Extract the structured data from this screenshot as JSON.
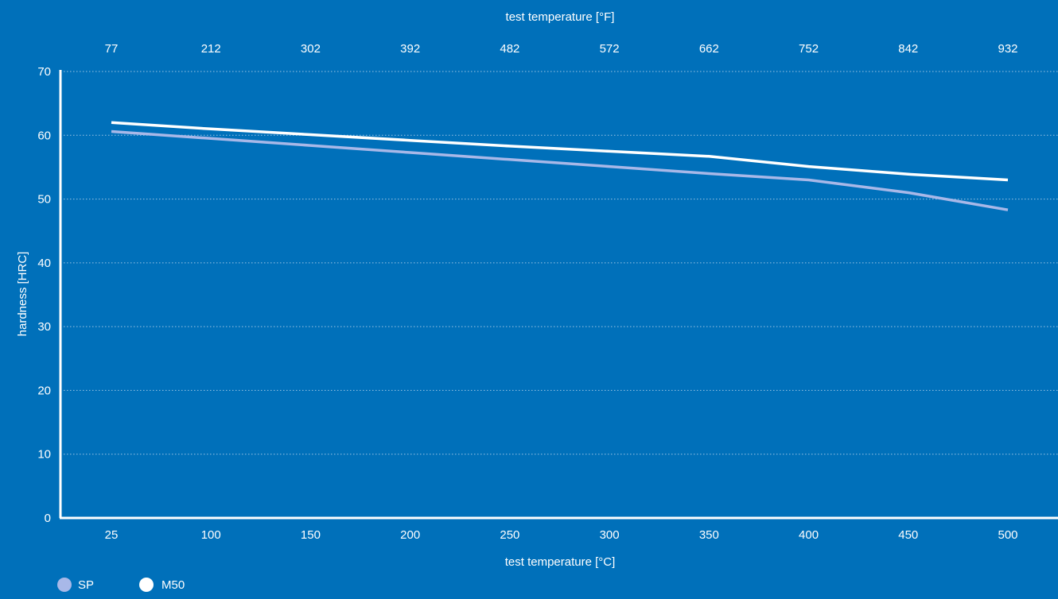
{
  "colors": {
    "background": "#0070BA",
    "axis": "#FFFFFF",
    "grid": "#9CC4E4",
    "text": "#FFFFFF"
  },
  "chart_data": {
    "type": "line",
    "title": "",
    "xlabel": "test temperature [°C]",
    "x2label": "test temperature [°F]",
    "ylabel": "hardness [HRC]",
    "xlim": [
      0,
      525
    ],
    "ylim": [
      0,
      70
    ],
    "x_ticks": [
      "25",
      "100",
      "150",
      "200",
      "250",
      "300",
      "350",
      "400",
      "450",
      "500"
    ],
    "x2_ticks": [
      "77",
      "212",
      "302",
      "392",
      "482",
      "572",
      "662",
      "752",
      "842",
      "932"
    ],
    "y_ticks": [
      "0",
      "10",
      "20",
      "30",
      "40",
      "50",
      "60",
      "70"
    ],
    "grid": "horizontal dotted",
    "legend_position": "bottom-left",
    "series": [
      {
        "name": "SP",
        "color": "#A8B8E8",
        "x": [
          0,
          1,
          2,
          3,
          4,
          5,
          6,
          7,
          8,
          9
        ],
        "y": [
          60.6,
          59.5,
          58.4,
          57.3,
          56.2,
          55.1,
          54.0,
          53.0,
          51.0,
          48.3
        ]
      },
      {
        "name": "M50",
        "color": "#FFFFFF",
        "x": [
          0,
          1,
          2,
          3,
          4,
          5,
          6,
          7,
          8,
          9
        ],
        "y": [
          62.0,
          61.0,
          60.1,
          59.2,
          58.3,
          57.5,
          56.7,
          55.1,
          53.9,
          53.0
        ]
      }
    ]
  }
}
